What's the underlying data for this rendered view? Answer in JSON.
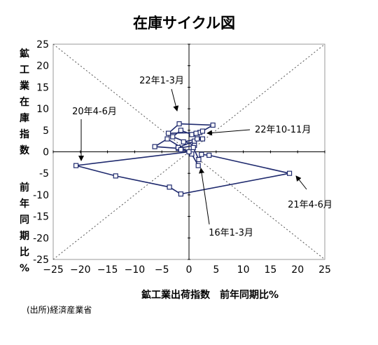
{
  "chart_data": {
    "type": "scatter",
    "title": "在庫サイクル図",
    "xlabel": "鉱工業出荷指数　前年同期比%",
    "ylabel_lines": [
      "鉱",
      "工",
      "業",
      "在",
      "庫",
      "指",
      "数",
      "",
      "前",
      "年",
      "同",
      "期",
      "比",
      "%"
    ],
    "xlim": [
      -25,
      25
    ],
    "ylim": [
      -25,
      25
    ],
    "x_ticks": [
      "−25",
      "−20",
      "−15",
      "−10",
      "−5",
      "0",
      "5",
      "10",
      "15",
      "20",
      "25"
    ],
    "y_ticks": [
      "25",
      "20",
      "15",
      "10",
      "5",
      "0",
      "-5",
      "-10",
      "-15",
      "-20",
      "-25"
    ],
    "grid": false,
    "diagonals": true,
    "series": [
      {
        "color": "#1f2a6e",
        "marker": "square-open",
        "points": [
          [
            1.7,
            -3.2
          ],
          [
            0.5,
            -0.5
          ],
          [
            -4.0,
            3.0
          ],
          [
            -6.3,
            1.2
          ],
          [
            -2.0,
            0.8
          ],
          [
            1.0,
            1.5
          ],
          [
            -3.0,
            3.5
          ],
          [
            -1.5,
            5.0
          ],
          [
            0.5,
            4.0
          ],
          [
            2.5,
            3.0
          ],
          [
            1.0,
            2.5
          ],
          [
            -2.0,
            1.0
          ],
          [
            -1.5,
            0.5
          ],
          [
            0.0,
            0.0
          ],
          [
            -20.8,
            -3.2
          ],
          [
            -13.5,
            -5.6
          ],
          [
            -3.6,
            -8.2
          ],
          [
            -1.5,
            -9.8
          ],
          [
            18.5,
            -5.0
          ],
          [
            3.7,
            -0.8
          ],
          [
            2.3,
            -0.6
          ],
          [
            1.8,
            -1.8
          ],
          [
            0.8,
            1.0
          ],
          [
            1.5,
            3.5
          ],
          [
            2.0,
            4.5
          ],
          [
            -3.8,
            4.3
          ],
          [
            -1.8,
            6.5
          ],
          [
            4.4,
            6.2
          ],
          [
            2.5,
            4.8
          ],
          [
            1.3,
            4.3
          ],
          [
            1.5,
            3.0
          ],
          [
            -1.0,
            2.3
          ]
        ]
      }
    ],
    "annotations": [
      {
        "text": "22年1-3月",
        "point": [
          -1.8,
          6.5
        ]
      },
      {
        "text": "20年4-6月",
        "point": [
          -20.8,
          -3.2
        ]
      },
      {
        "text": "22年10-11月",
        "point": [
          2.5,
          3.0
        ]
      },
      {
        "text": "21年4-6月",
        "point": [
          18.5,
          -5.0
        ]
      },
      {
        "text": "16年1-3月",
        "point": [
          1.7,
          -3.2
        ]
      }
    ]
  },
  "source": "(出所)経済産業省"
}
